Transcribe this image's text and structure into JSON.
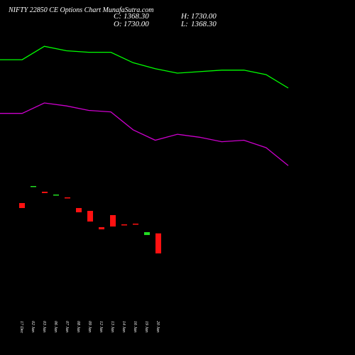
{
  "header": {
    "title": "NIFTY 22850  CE Options  Chart MunafaSutra.com",
    "ohlc": [
      {
        "label": "C:",
        "value": "1368.30"
      },
      {
        "label": "H:",
        "value": "1730.00"
      },
      {
        "label": "O:",
        "value": "1730.00"
      },
      {
        "label": "L:",
        "value": "1368.30"
      }
    ]
  },
  "chart_data": [
    {
      "type": "candlestick",
      "categories": [
        "17 Dec",
        "02 Jan",
        "03 Jan",
        "06 Jan",
        "07 Jan",
        "08 Jan",
        "09 Jan",
        "12 Jan",
        "13 Jan",
        "14 Jan",
        "16 Jan",
        "19 Jan",
        "20 Jan"
      ],
      "open": [
        2278,
        2580,
        2483,
        2428,
        2381,
        2188,
        2137,
        1842,
        2060,
        1893,
        1906,
        1700,
        1730
      ],
      "close": [
        2188,
        2586,
        2458,
        2432,
        2377,
        2111,
        1944,
        1803,
        1854,
        1887,
        1900,
        1752,
        1368.3
      ],
      "up_color": "#22dd22",
      "down_color": "#ff1111",
      "ylim": [
        1200,
        2740
      ]
    },
    {
      "type": "line",
      "x": [
        0,
        1,
        2,
        3,
        4,
        5,
        6,
        7,
        8,
        9,
        10,
        11,
        12,
        13
      ],
      "xlim": [
        0,
        13
      ],
      "ylim": [
        0,
        100
      ],
      "series": [
        {
          "color": "#00ff00",
          "values": [
            79,
            79,
            88,
            85,
            84,
            84,
            77,
            73,
            70,
            71,
            72,
            72,
            69,
            60
          ]
        },
        {
          "color": "#cc00cc",
          "values": [
            43,
            43,
            50,
            48,
            45,
            44,
            32,
            25,
            29,
            27,
            24,
            25,
            20,
            8
          ]
        }
      ]
    }
  ]
}
